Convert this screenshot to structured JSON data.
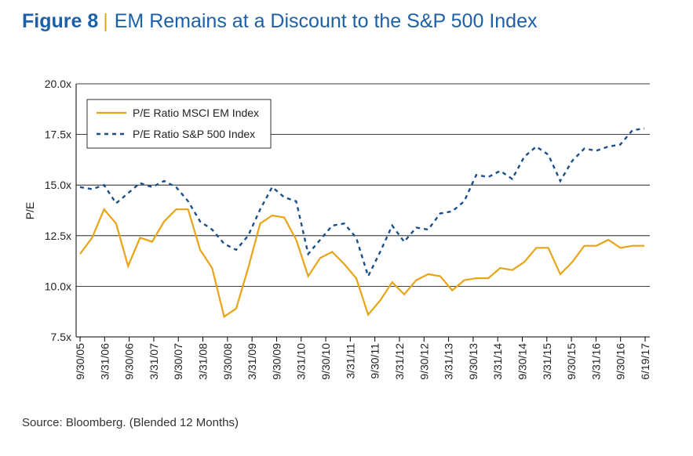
{
  "header": {
    "figure_label": "Figure 8",
    "title": "EM Remains at a Discount to the S&P 500 Index"
  },
  "source_note": "Source: Bloomberg. (Blended 12 Months)",
  "colors": {
    "title": "#1c60a8",
    "separator": "#e8a416",
    "em_series": "#e8a416",
    "sp_series": "#1a4f8a",
    "axis": "#000000",
    "grid": "#000000"
  },
  "chart_data": {
    "type": "line",
    "ylabel": "P/E",
    "xlabel": "",
    "ylim": [
      7.5,
      20.0
    ],
    "yticks": [
      7.5,
      10.0,
      12.5,
      15.0,
      17.5,
      20.0
    ],
    "ytick_labels": [
      "7.5x",
      "10.0x",
      "12.5x",
      "15.0x",
      "17.5x",
      "20.0x"
    ],
    "grid": true,
    "legend_position": "top-left",
    "x_tick_labels": [
      "9/30/05",
      "3/31/06",
      "9/30/06",
      "3/31/07",
      "9/30/07",
      "3/31/08",
      "9/30/08",
      "3/31/09",
      "9/30/09",
      "3/31/10",
      "9/30/10",
      "3/31/11",
      "9/30/11",
      "3/31/12",
      "9/30/12",
      "3/31/13",
      "9/30/13",
      "3/31/14",
      "9/30/14",
      "3/31/15",
      "9/30/15",
      "3/31/16",
      "9/30/16",
      "6/19/17"
    ],
    "series": [
      {
        "name": "P/E Ratio MSCI EM Index",
        "style": "solid",
        "values": [
          11.6,
          12.4,
          13.8,
          13.1,
          11.0,
          12.4,
          12.2,
          13.2,
          13.8,
          13.8,
          11.8,
          10.9,
          8.5,
          8.9,
          10.9,
          13.1,
          13.5,
          13.4,
          12.3,
          10.5,
          11.4,
          11.7,
          11.1,
          10.4,
          8.6,
          9.3,
          10.2,
          9.6,
          10.3,
          10.6,
          10.5,
          9.8,
          10.3,
          10.4,
          10.4,
          10.9,
          10.8,
          11.2,
          11.9,
          11.9,
          10.6,
          11.2,
          12.0,
          12.0,
          12.3,
          11.9,
          12.0,
          12.0
        ]
      },
      {
        "name": "P/E Ratio S&P 500 Index",
        "style": "dashed",
        "values": [
          14.9,
          14.8,
          15.0,
          14.1,
          14.6,
          15.1,
          14.9,
          15.2,
          14.9,
          14.2,
          13.2,
          12.8,
          12.1,
          11.8,
          12.5,
          13.8,
          14.9,
          14.4,
          14.2,
          11.6,
          12.3,
          13.0,
          13.1,
          12.4,
          10.5,
          11.7,
          13.0,
          12.2,
          12.9,
          12.8,
          13.6,
          13.7,
          14.2,
          15.5,
          15.4,
          15.7,
          15.3,
          16.4,
          16.9,
          16.5,
          15.2,
          16.2,
          16.8,
          16.7,
          16.9,
          17.0,
          17.7,
          17.8
        ]
      }
    ]
  }
}
